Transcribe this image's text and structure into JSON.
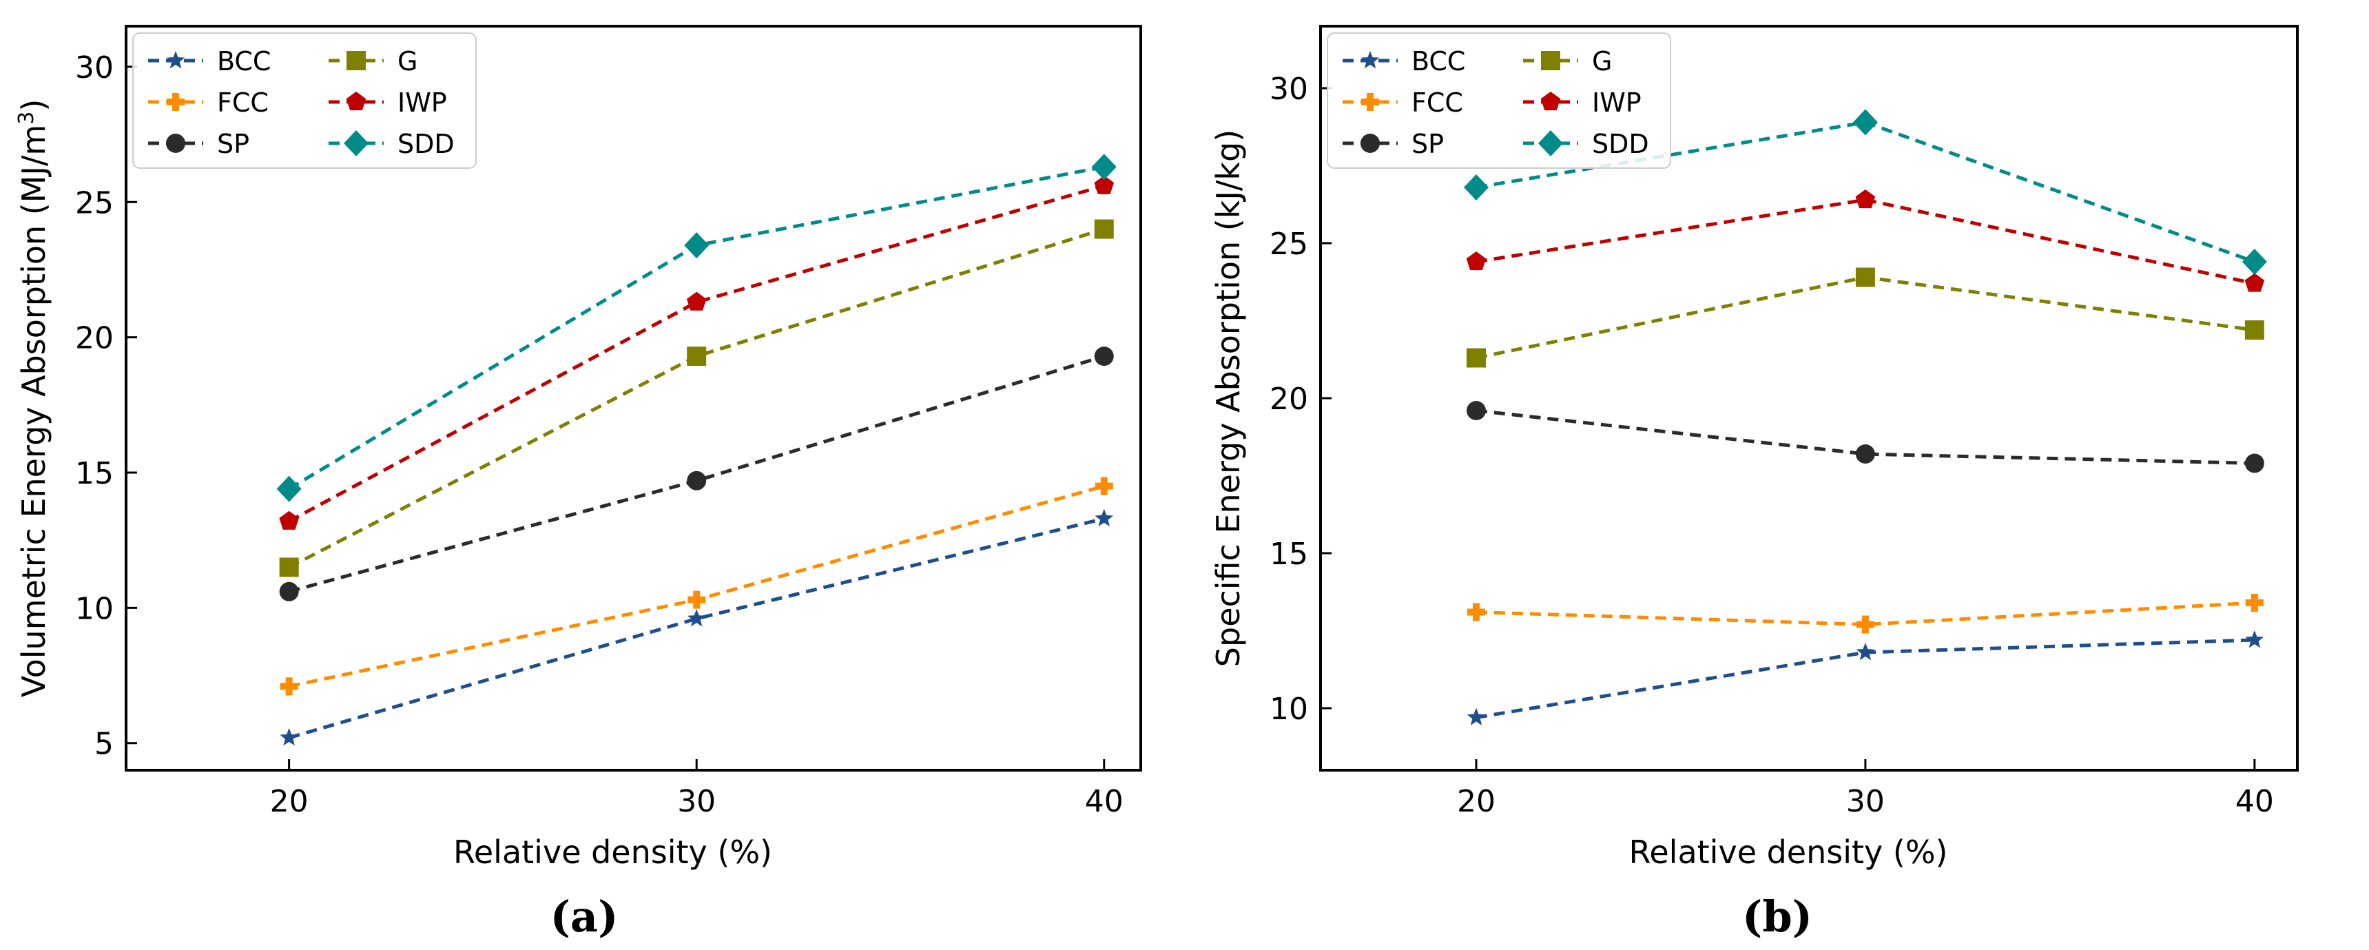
{
  "chart_data": [
    {
      "type": "line",
      "panel_label": "(a)",
      "xlabel": "Relative density (%)",
      "ylabel": "Volumetric Energy Absorption (MJ/m",
      "ylabel_sup": "3",
      "ylabel_end": ")",
      "x": [
        20,
        30,
        40
      ],
      "xticks": [
        "20",
        "30",
        "40"
      ],
      "xlim": [
        16,
        40.9
      ],
      "yticks": [
        "5",
        "10",
        "15",
        "20",
        "25",
        "30"
      ],
      "ylim": [
        4,
        31.5
      ],
      "legend_position": "top-left",
      "series": [
        {
          "name": "BCC",
          "marker": "star",
          "values": [
            5.2,
            9.6,
            13.3
          ]
        },
        {
          "name": "FCC",
          "marker": "plus",
          "values": [
            7.1,
            10.3,
            14.5
          ]
        },
        {
          "name": "SP",
          "marker": "circle",
          "values": [
            10.6,
            14.7,
            19.3
          ]
        },
        {
          "name": "G",
          "marker": "square",
          "values": [
            11.5,
            19.3,
            24.0
          ]
        },
        {
          "name": "IWP",
          "marker": "pentagon",
          "values": [
            13.2,
            21.3,
            25.6
          ]
        },
        {
          "name": "SDD",
          "marker": "diamond",
          "values": [
            14.4,
            23.4,
            26.3
          ]
        }
      ]
    },
    {
      "type": "line",
      "panel_label": "(b)",
      "xlabel": "Relative density (%)",
      "ylabel": "Specific Energy Absorption (kJ/kg)",
      "ylabel_sup": "",
      "ylabel_end": "",
      "x": [
        20,
        30,
        40
      ],
      "xticks": [
        "20",
        "30",
        "40"
      ],
      "xlim": [
        16,
        41.1
      ],
      "yticks": [
        "10",
        "15",
        "20",
        "25",
        "30"
      ],
      "ylim": [
        8,
        32
      ],
      "legend_position": "top-left",
      "series": [
        {
          "name": "BCC",
          "marker": "star",
          "values": [
            9.7,
            11.8,
            12.2
          ]
        },
        {
          "name": "FCC",
          "marker": "plus",
          "values": [
            13.1,
            12.7,
            13.4
          ]
        },
        {
          "name": "SP",
          "marker": "circle",
          "values": [
            19.6,
            18.2,
            17.9
          ]
        },
        {
          "name": "G",
          "marker": "square",
          "values": [
            21.3,
            23.9,
            22.2
          ]
        },
        {
          "name": "IWP",
          "marker": "pentagon",
          "values": [
            24.4,
            26.4,
            23.7
          ]
        },
        {
          "name": "SDD",
          "marker": "diamond",
          "values": [
            26.8,
            28.9,
            24.4
          ]
        }
      ]
    }
  ],
  "colors": {
    "BCC": "#1f4e8c",
    "FCC": "#ff8c00",
    "SP": "#2b2b2b",
    "G": "#808000",
    "IWP": "#c00000",
    "SDD": "#008b8b"
  }
}
